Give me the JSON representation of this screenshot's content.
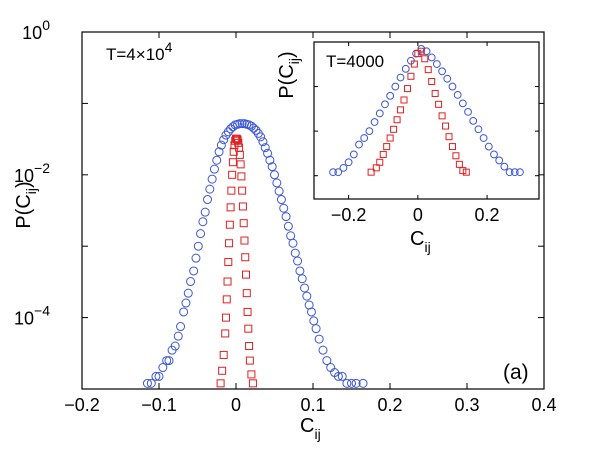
{
  "chart_data": [
    {
      "id": "main",
      "type": "scatter",
      "yscale": "log",
      "xlim": [
        -0.2,
        0.4
      ],
      "ylim": [
        1e-05,
        1
      ],
      "xticks": [
        "−0.2",
        "−0.1",
        "0",
        "0.1",
        "0.2",
        "0.3",
        "0.4"
      ],
      "yticks": [
        {
          "base": "10",
          "exp": "0"
        },
        {
          "base": "10",
          "exp": "−2"
        },
        {
          "base": "10",
          "exp": "−4"
        }
      ],
      "xlabel": {
        "base": "C",
        "sub": "ij"
      },
      "ylabel": {
        "pre": "P(C",
        "sub": "ij",
        "post": ")"
      },
      "annotation": {
        "pre": "T=4×10",
        "sup": "4"
      },
      "panel_letter": "(a)",
      "grid": false,
      "series": [
        {
          "marker": "circle",
          "color": "#3b57d6",
          "points": [
            [
              -0.115,
              1.2e-05
            ],
            [
              -0.11,
              1.2e-05
            ],
            [
              -0.104,
              1.5e-05
            ],
            [
              -0.1,
              1.5e-05
            ],
            [
              -0.095,
              2e-05
            ],
            [
              -0.09,
              2.5e-05
            ],
            [
              -0.087,
              2.5e-05
            ],
            [
              -0.083,
              3.5e-05
            ],
            [
              -0.079,
              4e-05
            ],
            [
              -0.075,
              5.5e-05
            ],
            [
              -0.072,
              7.5e-05
            ],
            [
              -0.068,
              0.00012
            ],
            [
              -0.065,
              0.00016
            ],
            [
              -0.062,
              0.00022
            ],
            [
              -0.059,
              0.00032
            ],
            [
              -0.055,
              0.00045
            ],
            [
              -0.052,
              0.00068
            ],
            [
              -0.049,
              0.001
            ],
            [
              -0.046,
              0.0015
            ],
            [
              -0.043,
              0.0022
            ],
            [
              -0.04,
              0.003
            ],
            [
              -0.037,
              0.0045
            ],
            [
              -0.034,
              0.0063
            ],
            [
              -0.031,
              0.0087
            ],
            [
              -0.028,
              0.012
            ],
            [
              -0.025,
              0.016
            ],
            [
              -0.022,
              0.021
            ],
            [
              -0.019,
              0.026
            ],
            [
              -0.016,
              0.031
            ],
            [
              -0.013,
              0.036
            ],
            [
              -0.01,
              0.04
            ],
            [
              -0.007,
              0.044
            ],
            [
              -0.004,
              0.047
            ],
            [
              -0.001,
              0.05
            ],
            [
              0.002,
              0.051
            ],
            [
              0.005,
              0.052
            ],
            [
              0.008,
              0.052
            ],
            [
              0.011,
              0.052
            ],
            [
              0.014,
              0.051
            ],
            [
              0.017,
              0.05
            ],
            [
              0.02,
              0.048
            ],
            [
              0.023,
              0.045
            ],
            [
              0.026,
              0.042
            ],
            [
              0.029,
              0.038
            ],
            [
              0.032,
              0.034
            ],
            [
              0.035,
              0.029
            ],
            [
              0.038,
              0.024
            ],
            [
              0.041,
              0.02
            ],
            [
              0.044,
              0.016
            ],
            [
              0.047,
              0.013
            ],
            [
              0.05,
              0.01
            ],
            [
              0.053,
              0.0077
            ],
            [
              0.056,
              0.0059
            ],
            [
              0.059,
              0.0045
            ],
            [
              0.062,
              0.0034
            ],
            [
              0.065,
              0.0026
            ],
            [
              0.068,
              0.0019
            ],
            [
              0.071,
              0.0014
            ],
            [
              0.074,
              0.0011
            ],
            [
              0.077,
              0.0008
            ],
            [
              0.08,
              0.00062
            ],
            [
              0.083,
              0.00045
            ],
            [
              0.086,
              0.00035
            ],
            [
              0.089,
              0.00026
            ],
            [
              0.092,
              0.0002
            ],
            [
              0.095,
              0.00015
            ],
            [
              0.098,
              0.00012
            ],
            [
              0.101,
              9e-05
            ],
            [
              0.104,
              7e-05
            ],
            [
              0.108,
              5e-05
            ],
            [
              0.113,
              3.5e-05
            ],
            [
              0.118,
              2.5e-05
            ],
            [
              0.123,
              2e-05
            ],
            [
              0.128,
              1.7e-05
            ],
            [
              0.133,
              1.5e-05
            ],
            [
              0.138,
              1.5e-05
            ],
            [
              0.144,
              1.2e-05
            ],
            [
              0.15,
              1.2e-05
            ],
            [
              0.156,
              1.2e-05
            ],
            [
              0.165,
              1.2e-05
            ]
          ]
        },
        {
          "marker": "square",
          "color": "#e02020",
          "points": [
            [
              -0.02,
              1.2e-05
            ],
            [
              -0.018,
              1.8e-05
            ],
            [
              -0.016,
              3e-05
            ],
            [
              -0.014,
              6e-05
            ],
            [
              -0.013,
              0.0001
            ],
            [
              -0.012,
              0.00018
            ],
            [
              -0.011,
              0.00032
            ],
            [
              -0.01,
              0.0006
            ],
            [
              -0.009,
              0.0011
            ],
            [
              -0.008,
              0.002
            ],
            [
              -0.007,
              0.0035
            ],
            [
              -0.006,
              0.006
            ],
            [
              -0.005,
              0.01
            ],
            [
              -0.004,
              0.015
            ],
            [
              -0.003,
              0.021
            ],
            [
              -0.002,
              0.026
            ],
            [
              -0.001,
              0.03
            ],
            [
              0.0,
              0.032
            ],
            [
              0.001,
              0.032
            ],
            [
              0.002,
              0.031
            ],
            [
              0.003,
              0.028
            ],
            [
              0.004,
              0.024
            ],
            [
              0.005,
              0.019
            ],
            [
              0.006,
              0.014
            ],
            [
              0.007,
              0.0095
            ],
            [
              0.008,
              0.006
            ],
            [
              0.009,
              0.0036
            ],
            [
              0.01,
              0.0021
            ],
            [
              0.011,
              0.0012
            ],
            [
              0.012,
              0.0007
            ],
            [
              0.013,
              0.0004
            ],
            [
              0.014,
              0.00022
            ],
            [
              0.015,
              0.00012
            ],
            [
              0.016,
              7e-05
            ],
            [
              0.017,
              4e-05
            ],
            [
              0.018,
              2.5e-05
            ],
            [
              0.02,
              1.6e-05
            ],
            [
              0.022,
              1.2e-05
            ]
          ]
        }
      ]
    },
    {
      "id": "inset",
      "type": "scatter",
      "yscale": "log",
      "xlim": [
        -0.3,
        0.35
      ],
      "ylim": [
        0.0003,
        1
      ],
      "xticks": [
        "−0.2",
        "0",
        "0.2"
      ],
      "xlabel": {
        "base": "C",
        "sub": "ij"
      },
      "ylabel": {
        "pre": "P(C",
        "sub": "ij",
        "post": ")"
      },
      "annotation": {
        "pre": "T=4000"
      },
      "grid": false,
      "series": [
        {
          "marker": "circle",
          "color": "#3b57d6",
          "points": [
            [
              -0.245,
              0.0012
            ],
            [
              -0.23,
              0.0012
            ],
            [
              -0.215,
              0.0015
            ],
            [
              -0.2,
              0.002
            ],
            [
              -0.185,
              0.003
            ],
            [
              -0.17,
              0.005
            ],
            [
              -0.155,
              0.007
            ],
            [
              -0.14,
              0.01
            ],
            [
              -0.125,
              0.016
            ],
            [
              -0.11,
              0.025
            ],
            [
              -0.095,
              0.04
            ],
            [
              -0.08,
              0.062
            ],
            [
              -0.065,
              0.1
            ],
            [
              -0.05,
              0.16
            ],
            [
              -0.035,
              0.25
            ],
            [
              -0.02,
              0.38
            ],
            [
              -0.005,
              0.55
            ],
            [
              0.01,
              0.7
            ],
            [
              0.025,
              0.62
            ],
            [
              0.04,
              0.45
            ],
            [
              0.055,
              0.32
            ],
            [
              0.07,
              0.22
            ],
            [
              0.085,
              0.15
            ],
            [
              0.1,
              0.1
            ],
            [
              0.115,
              0.065
            ],
            [
              0.13,
              0.042
            ],
            [
              0.145,
              0.027
            ],
            [
              0.16,
              0.017
            ],
            [
              0.175,
              0.011
            ],
            [
              0.19,
              0.007
            ],
            [
              0.205,
              0.0045
            ],
            [
              0.22,
              0.003
            ],
            [
              0.235,
              0.0022
            ],
            [
              0.25,
              0.0016
            ],
            [
              0.265,
              0.0012
            ],
            [
              0.28,
              0.0012
            ],
            [
              0.295,
              0.0012
            ]
          ]
        },
        {
          "marker": "square",
          "color": "#e02020",
          "points": [
            [
              -0.135,
              0.0012
            ],
            [
              -0.12,
              0.0015
            ],
            [
              -0.11,
              0.002
            ],
            [
              -0.1,
              0.003
            ],
            [
              -0.09,
              0.0045
            ],
            [
              -0.08,
              0.007
            ],
            [
              -0.07,
              0.011
            ],
            [
              -0.06,
              0.018
            ],
            [
              -0.05,
              0.03
            ],
            [
              -0.04,
              0.05
            ],
            [
              -0.03,
              0.09
            ],
            [
              -0.02,
              0.17
            ],
            [
              -0.01,
              0.32
            ],
            [
              0.0,
              0.55
            ],
            [
              0.01,
              0.62
            ],
            [
              0.02,
              0.42
            ],
            [
              0.03,
              0.24
            ],
            [
              0.04,
              0.13
            ],
            [
              0.05,
              0.07
            ],
            [
              0.06,
              0.04
            ],
            [
              0.07,
              0.022
            ],
            [
              0.08,
              0.013
            ],
            [
              0.09,
              0.0075
            ],
            [
              0.1,
              0.0045
            ],
            [
              0.11,
              0.0028
            ],
            [
              0.12,
              0.0018
            ],
            [
              0.13,
              0.0013
            ],
            [
              0.14,
              0.0012
            ]
          ]
        }
      ]
    }
  ]
}
